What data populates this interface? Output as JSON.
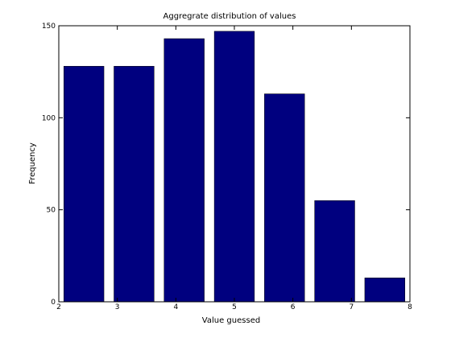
{
  "chart_data": {
    "type": "bar",
    "title": "Aggregrate distribution of values",
    "xlabel": "Value guessed",
    "ylabel": "Frequency",
    "categories": [
      "2",
      "3",
      "4",
      "5",
      "6",
      "7",
      "8"
    ],
    "values": [
      128,
      128,
      143,
      147,
      113,
      55,
      13
    ],
    "xlim": [
      2,
      8
    ],
    "ylim": [
      0,
      150
    ],
    "xticks": [
      2,
      3,
      4,
      5,
      6,
      7,
      8
    ],
    "yticks": [
      0,
      50,
      100,
      150
    ],
    "bar_color": "#00007f",
    "grid": false,
    "legend": "none"
  }
}
